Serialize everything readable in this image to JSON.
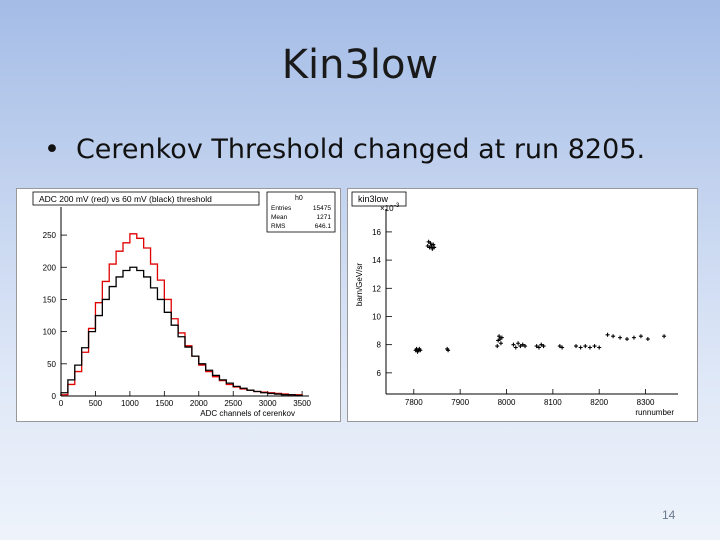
{
  "slide": {
    "title": "Kin3low",
    "bullet_marker": "•",
    "bullet_text": "Cerenkov Threshold changed at run 8205.",
    "page_number": "14"
  },
  "chart_data": [
    {
      "type": "line",
      "title": "ADC 200 mV (red) vs 60 mV (black) threshold",
      "xlabel": "ADC channels of cerenkov",
      "ylabel": "",
      "xlim": [
        0,
        3600
      ],
      "ylim": [
        0,
        275
      ],
      "xticks": [
        0,
        500,
        1000,
        1500,
        2000,
        2500,
        3000,
        3500
      ],
      "xtick_labels": [
        "0",
        "500",
        "1000",
        "1500",
        "2000",
        "2500",
        "3000",
        "3500"
      ],
      "yticks": [
        0,
        50,
        100,
        150,
        200,
        250
      ],
      "ytick_labels": [
        "0",
        "50",
        "100",
        "150",
        "200",
        "250"
      ],
      "stats_box": {
        "name": "h0",
        "rows": [
          {
            "label": "Entries",
            "value": "15475"
          },
          {
            "label": "Mean",
            "value": "1271"
          },
          {
            "label": "RMS",
            "value": "646.1"
          }
        ]
      },
      "series": [
        {
          "color": "#e00000",
          "x": [
            0,
            100,
            200,
            300,
            400,
            500,
            600,
            700,
            800,
            900,
            1000,
            1100,
            1200,
            1300,
            1400,
            1500,
            1600,
            1700,
            1800,
            1900,
            2000,
            2100,
            2200,
            2300,
            2400,
            2500,
            2600,
            2700,
            2800,
            2900,
            3000,
            3100,
            3200,
            3300,
            3400
          ],
          "values": [
            2,
            18,
            38,
            68,
            105,
            145,
            178,
            205,
            225,
            238,
            252,
            245,
            230,
            205,
            180,
            150,
            120,
            98,
            78,
            62,
            48,
            38,
            30,
            24,
            18,
            14,
            11,
            9,
            7,
            6,
            5,
            4,
            3,
            2,
            2
          ]
        },
        {
          "color": "#000000",
          "x": [
            0,
            100,
            200,
            300,
            400,
            500,
            600,
            700,
            800,
            900,
            1000,
            1100,
            1200,
            1300,
            1400,
            1500,
            1600,
            1700,
            1800,
            1900,
            2000,
            2100,
            2200,
            2300,
            2400,
            2500,
            2600,
            2700,
            2800,
            2900,
            3000,
            3100,
            3200,
            3300,
            3400
          ],
          "values": [
            5,
            25,
            48,
            75,
            100,
            125,
            150,
            170,
            185,
            195,
            200,
            195,
            185,
            168,
            150,
            130,
            110,
            92,
            76,
            62,
            50,
            40,
            32,
            25,
            20,
            15,
            12,
            9,
            7,
            5,
            4,
            3,
            2,
            2,
            1
          ]
        }
      ]
    },
    {
      "type": "scatter",
      "title": "kin3low",
      "xlabel": "runnumber",
      "ylabel": "barn/GeV/sr",
      "y_multiplier_label": "×10",
      "y_multiplier_exp": "-3",
      "xlim": [
        7740,
        8370
      ],
      "ylim": [
        4.5,
        17.2
      ],
      "xticks": [
        7800,
        7900,
        8000,
        8100,
        8200,
        8300
      ],
      "xtick_labels": [
        "7800",
        "7900",
        "8000",
        "8100",
        "8200",
        "8300"
      ],
      "yticks": [
        6,
        8,
        10,
        12,
        14,
        16
      ],
      "ytick_labels": [
        "6",
        "8",
        "10",
        "12",
        "14",
        "16"
      ],
      "clusters": [
        {
          "x": [
            7830,
            7832,
            7834,
            7836,
            7838,
            7840,
            7842,
            7844
          ],
          "y": [
            15.0,
            15.3,
            14.9,
            15.2,
            15.0,
            14.8,
            15.1,
            14.9
          ]
        },
        {
          "x": [
            7804,
            7806,
            7808,
            7810,
            7812,
            7814
          ],
          "y": [
            7.6,
            7.7,
            7.5,
            7.6,
            7.7,
            7.6
          ]
        },
        {
          "x": [
            7872,
            7874
          ],
          "y": [
            7.7,
            7.6
          ]
        },
        {
          "x": [
            7980,
            7982,
            7984,
            7986,
            7988,
            7990
          ],
          "y": [
            7.9,
            8.3,
            8.6,
            8.4,
            8.1,
            8.5
          ]
        },
        {
          "x": [
            8015,
            8020,
            8025,
            8030,
            8035,
            8040
          ],
          "y": [
            8.0,
            7.8,
            8.1,
            7.9,
            8.0,
            7.9
          ]
        },
        {
          "x": [
            8065,
            8070,
            8075,
            8080
          ],
          "y": [
            7.9,
            7.8,
            8.0,
            7.9
          ]
        },
        {
          "x": [
            8115,
            8120
          ],
          "y": [
            7.9,
            7.8
          ]
        },
        {
          "x": [
            8150,
            8160,
            8170,
            8180,
            8190,
            8200
          ],
          "y": [
            7.9,
            7.8,
            7.9,
            7.8,
            7.9,
            7.8
          ]
        },
        {
          "x": [
            8218,
            8230,
            8245,
            8260,
            8275,
            8290,
            8305
          ],
          "y": [
            8.7,
            8.6,
            8.5,
            8.4,
            8.5,
            8.6,
            8.4
          ]
        },
        {
          "x": [
            8340
          ],
          "y": [
            8.6
          ]
        }
      ]
    }
  ]
}
